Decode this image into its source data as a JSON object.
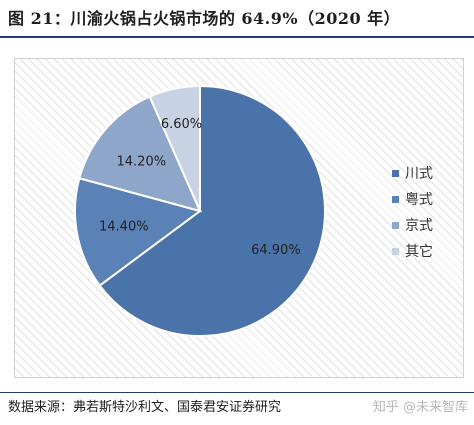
{
  "title": "图 21：川渝火锅占火锅市场的 64.9%（2020 年）",
  "source": "数据来源：弗若斯特沙利文、国泰君安证券研究",
  "watermark": "知乎 @未来智库",
  "colors": {
    "slice_sichuan": "#4a73aa",
    "slice_cantonese": "#5b82b6",
    "slice_beijing": "#8ea6c9",
    "slice_other": "#c7d2e4",
    "rule": "#1f3c6e"
  },
  "chart_data": {
    "type": "pie",
    "title": "",
    "categories": [
      "川式",
      "粤式",
      "京式",
      "其它"
    ],
    "values": [
      64.9,
      14.4,
      14.2,
      6.6
    ],
    "labels": [
      "64.90%",
      "14.40%",
      "14.20%",
      "6.60%"
    ],
    "legend_position": "right"
  }
}
